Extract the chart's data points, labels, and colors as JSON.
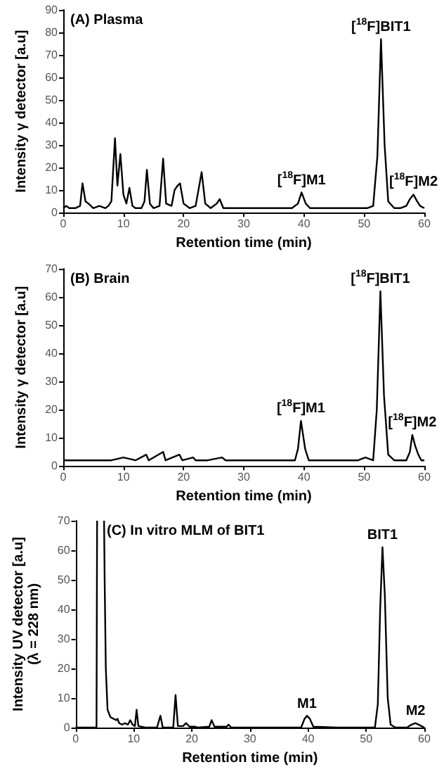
{
  "chart_data": [
    {
      "type": "line",
      "title": "(A) Plasma",
      "xlabel": "Retention time (min)",
      "ylabel": "Intensity γ detector [a.u]",
      "marker": "none",
      "color": "#000000",
      "x": [
        0,
        0.5,
        1,
        2,
        2.8,
        3.2,
        3.7,
        4.2,
        5,
        6,
        7,
        7.5,
        8,
        8.6,
        9,
        9.5,
        10,
        10.5,
        11,
        11.5,
        12,
        13,
        13.5,
        13.9,
        14.4,
        15,
        16,
        16.6,
        17.1,
        18,
        18.5,
        19,
        19.4,
        20,
        21,
        22,
        23,
        23.6,
        24.5,
        25.5,
        26,
        26.6,
        28,
        30,
        32,
        34,
        36,
        38,
        39,
        39.6,
        40.3,
        41,
        43,
        45,
        47,
        49,
        50.5,
        51.5,
        52.2,
        52.8,
        53.4,
        54,
        55,
        56,
        57,
        57.6,
        58.2,
        58.8,
        59.3,
        60
      ],
      "values": [
        2,
        3,
        2,
        2,
        3,
        13,
        5,
        4,
        2,
        3,
        2,
        3,
        5,
        33,
        12,
        26,
        8,
        4,
        11,
        3,
        2,
        2,
        5,
        19,
        4,
        2,
        3,
        24,
        4,
        3,
        10,
        12,
        13,
        4,
        2,
        3,
        18,
        4,
        2,
        4,
        6,
        2,
        2,
        2,
        2,
        2,
        2,
        2,
        4,
        9,
        4,
        2,
        2,
        2,
        2,
        2,
        2,
        3,
        25,
        77,
        30,
        5,
        2,
        2,
        3,
        6,
        8,
        5,
        3,
        2
      ],
      "xlim": [
        0,
        60
      ],
      "xticks": [
        0,
        10,
        20,
        30,
        40,
        50,
        60
      ],
      "ylim": [
        0,
        90
      ],
      "yticks": [
        0,
        10,
        20,
        30,
        40,
        50,
        60,
        70,
        80,
        90
      ],
      "annotations": [
        {
          "text": "[$^{18}$F]BIT1",
          "x": 52.8,
          "y": 77
        },
        {
          "text": "[$^{18}$F]M1",
          "x": 39.6,
          "y": 9
        },
        {
          "text": "[$^{18}$F]M2",
          "x": 58.2,
          "y": 8
        }
      ]
    },
    {
      "type": "line",
      "title": "(B) Brain",
      "xlabel": "Retention time (min)",
      "ylabel": "Intensity γ detector [a.u]",
      "marker": "none",
      "color": "#000000",
      "x": [
        0,
        2,
        4,
        6,
        8,
        10,
        12,
        13.8,
        14.2,
        16.6,
        17,
        19.3,
        19.8,
        21.6,
        22,
        24,
        26.4,
        27,
        30,
        33,
        36,
        38.5,
        39,
        39.5,
        40.2,
        40.8,
        43,
        46,
        49,
        50.2,
        51.5,
        52.1,
        52.7,
        53.3,
        54,
        55,
        57,
        57.6,
        58,
        58.5,
        59,
        59.5,
        60
      ],
      "values": [
        2,
        2,
        2,
        2,
        2,
        3,
        2,
        4,
        2,
        5,
        2,
        4,
        2,
        3,
        2,
        2,
        3,
        2,
        2,
        2,
        2,
        2,
        6,
        16,
        6,
        2,
        2,
        2,
        2,
        3,
        2,
        20,
        62,
        25,
        4,
        2,
        2,
        5,
        11,
        7,
        4,
        2,
        2
      ],
      "xlim": [
        0,
        60
      ],
      "xticks": [
        0,
        10,
        20,
        30,
        40,
        50,
        60
      ],
      "ylim": [
        0,
        70
      ],
      "yticks": [
        0,
        10,
        20,
        30,
        40,
        50,
        60,
        70
      ],
      "annotations": [
        {
          "text": "[$^{18}$F]BIT1",
          "x": 52.7,
          "y": 62
        },
        {
          "text": "[$^{18}$F]M1",
          "x": 39.5,
          "y": 16
        },
        {
          "text": "[$^{18}$F]M2",
          "x": 58,
          "y": 11
        }
      ]
    },
    {
      "type": "line",
      "title": "(C) In vitro MLM of BIT1",
      "xlabel": "Retention time (min)",
      "ylabel": "Intensity UV detector [a.u]\n(λ = 228 nm)",
      "marker": "none",
      "color": "#000000",
      "x": [
        0,
        3.4,
        3.6,
        3.7,
        4.3,
        4.9,
        5,
        5.2,
        5.5,
        6,
        6.5,
        7,
        7.2,
        7.5,
        8,
        8.5,
        9,
        9.4,
        9.8,
        10.2,
        10.5,
        10.8,
        12,
        14,
        14.6,
        15,
        16.8,
        17.2,
        17.6,
        18.5,
        19,
        19.6,
        20.5,
        21,
        23,
        23.4,
        23.9,
        26,
        26.3,
        26.8,
        30,
        35,
        38.8,
        39.4,
        39.8,
        40.3,
        40.9,
        45,
        50,
        51.5,
        52,
        52.4,
        52.8,
        53.2,
        53.7,
        54.2,
        55,
        57,
        57.8,
        58.5,
        59.2,
        60
      ],
      "values": [
        0,
        0,
        0,
        70,
        null,
        70,
        50,
        20,
        6,
        3.5,
        3,
        2.5,
        3,
        1.5,
        1,
        1.5,
        1,
        2.5,
        1,
        0.5,
        6,
        0.5,
        0,
        0,
        4,
        0,
        0,
        11,
        0.5,
        0.5,
        1.5,
        0.3,
        0.3,
        0,
        0.3,
        2.5,
        0.3,
        0.3,
        1,
        0,
        0,
        0,
        0,
        3,
        4,
        3,
        0.3,
        0,
        0,
        0,
        8,
        40,
        61,
        45,
        10,
        1,
        0,
        0,
        1,
        1.5,
        0.8,
        0
      ],
      "xlim": [
        0,
        60
      ],
      "xticks": [
        0,
        10,
        20,
        30,
        40,
        50,
        60
      ],
      "ylim": [
        0,
        70
      ],
      "yticks": [
        0,
        10,
        20,
        30,
        40,
        50,
        60,
        70
      ],
      "annotations": [
        {
          "text": "BIT1",
          "x": 52.8,
          "y": 61
        },
        {
          "text": "M1",
          "x": 39.8,
          "y": 4
        },
        {
          "text": "M2",
          "x": 58.5,
          "y": 1.5
        }
      ]
    }
  ]
}
